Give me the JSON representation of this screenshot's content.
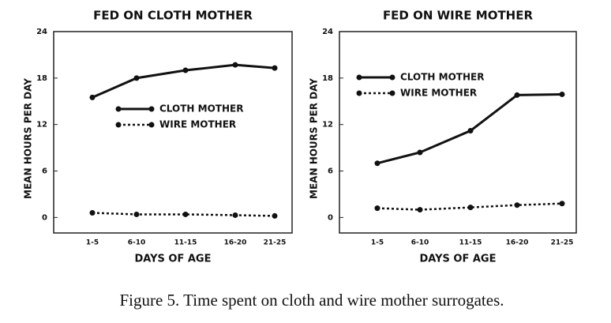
{
  "chart_data": [
    {
      "type": "line",
      "title": "FED ON CLOTH MOTHER",
      "xlabel": "DAYS OF AGE",
      "ylabel": "MEAN HOURS PER DAY",
      "categories": [
        "1-5",
        "6-10",
        "11-15",
        "16-20",
        "21-25"
      ],
      "series": [
        {
          "name": "CLOTH MOTHER",
          "color": "#111111",
          "line_style": "solid",
          "values": [
            15.5,
            18.0,
            19.0,
            19.7,
            19.3
          ]
        },
        {
          "name": "WIRE MOTHER",
          "color": "#111111",
          "line_style": "dotted",
          "values": [
            0.6,
            0.4,
            0.4,
            0.3,
            0.2
          ]
        }
      ],
      "ylim": [
        -2,
        24
      ],
      "yticks": [
        0,
        6,
        12,
        18,
        24
      ],
      "legend": "center"
    },
    {
      "type": "line",
      "title": "FED ON WIRE MOTHER",
      "xlabel": "DAYS OF AGE",
      "ylabel": "MEAN HOURS PER DAY",
      "categories": [
        "1-5",
        "6-10",
        "11-15",
        "16-20",
        "21-25"
      ],
      "series": [
        {
          "name": "CLOTH MOTHER",
          "color": "#111111",
          "line_style": "solid",
          "values": [
            7.0,
            8.4,
            11.2,
            15.8,
            15.9
          ]
        },
        {
          "name": "WIRE MOTHER",
          "color": "#111111",
          "line_style": "dotted",
          "values": [
            1.2,
            1.0,
            1.3,
            1.6,
            1.8
          ]
        }
      ],
      "ylim": [
        -2,
        24
      ],
      "yticks": [
        0,
        6,
        12,
        18,
        24
      ],
      "legend": "upper left"
    }
  ],
  "caption": "Figure 5. Time spent on cloth and wire mother surrogates."
}
